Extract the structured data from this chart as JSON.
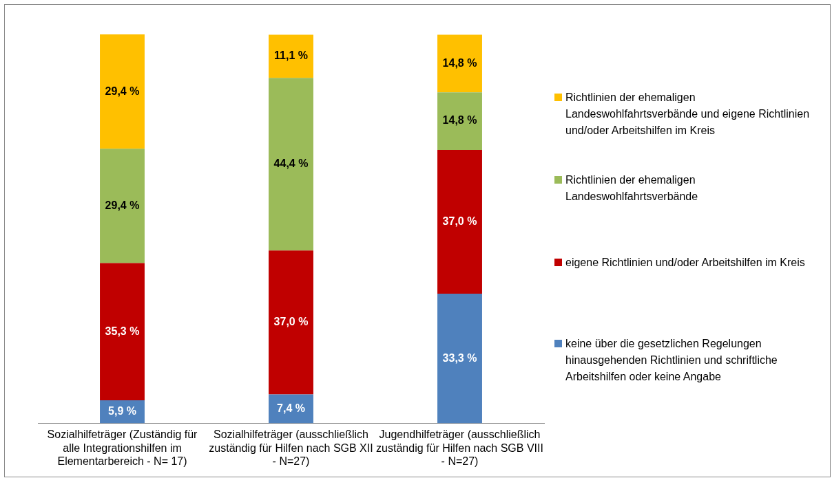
{
  "chart_data": {
    "type": "bar",
    "stacked": true,
    "categories": [
      "Sozialhilfeträger (Zuständig für alle Integrationshilfen im Elementarbereich - N= 17)",
      "Sozialhilfeträger (ausschließlich zuständig für Hilfen nach SGB XII - N=27)",
      "Jugendhilfeträger (ausschließlich zuständig für Hilfen nach SGB VIII - N=27)"
    ],
    "series": [
      {
        "name": "keine über die gesetzlichen Regelungen hinausgehenden Richtlinien und schriftliche Arbeitshilfen oder keine Angabe",
        "color": "#4f81bd",
        "values": [
          5.9,
          7.4,
          33.3
        ],
        "value_labels": [
          "5,9 %",
          "7,4 %",
          "33,3 %"
        ]
      },
      {
        "name": "eigene Richtlinien und/oder Arbeitshilfen im Kreis",
        "color": "#c00000",
        "values": [
          35.3,
          37.0,
          37.0
        ],
        "value_labels": [
          "35,3 %",
          "37,0 %",
          "37,0 %"
        ]
      },
      {
        "name": "Richtlinien der ehemaligen Landeswohlfahrtsverbände",
        "color": "#9bbb59",
        "values": [
          29.4,
          44.4,
          14.8
        ],
        "value_labels": [
          "29,4 %",
          "44,4 %",
          "14,8 %"
        ]
      },
      {
        "name": "Richtlinien der ehemaligen Landeswohlfahrtsverbände und eigene Richtlinien und/oder Arbeitshilfen im Kreis",
        "color": "#ffc000",
        "values": [
          29.4,
          11.1,
          14.8
        ],
        "value_labels": [
          "29,4 %",
          "11,1 %",
          "14,8 %"
        ]
      }
    ],
    "ylim": [
      0,
      100
    ],
    "tick_labels": "x",
    "grid": false,
    "legend": "right"
  }
}
